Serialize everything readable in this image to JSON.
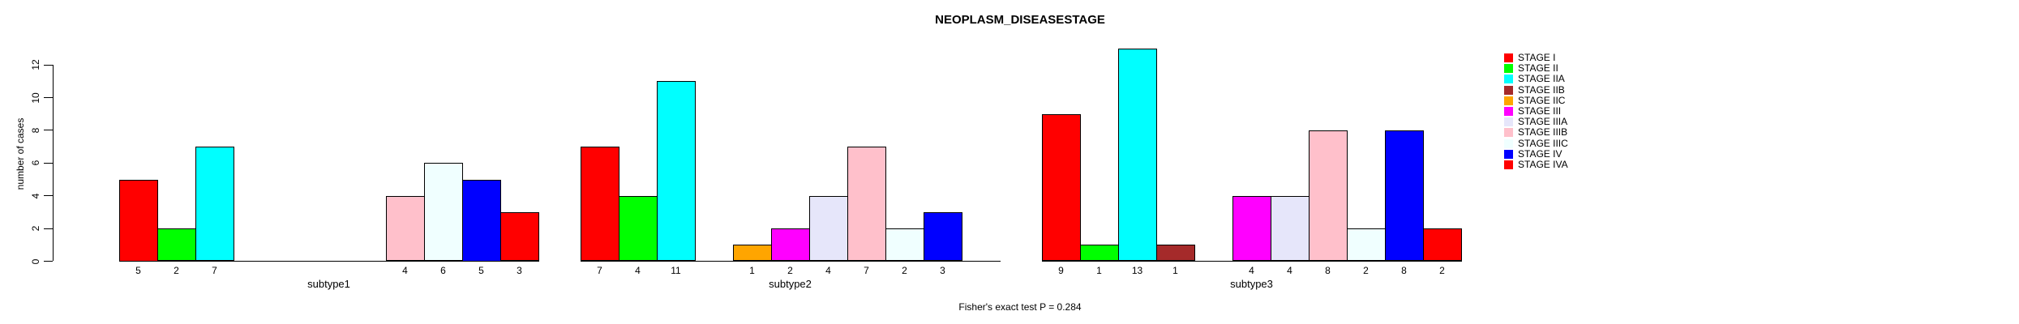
{
  "title": "NEOPLASM_DISEASESTAGE",
  "footer": "Fisher's exact test P = 0.284",
  "chart_data": {
    "type": "bar",
    "title": "NEOPLASM_DISEASESTAGE",
    "xlabel": "",
    "ylabel": "number of cases",
    "ylim": [
      0,
      13
    ],
    "yticks": [
      0,
      2,
      4,
      6,
      8,
      10,
      12
    ],
    "grid": false,
    "legend_position": "right",
    "annotation": "Fisher's exact test P = 0.284",
    "stages": [
      {
        "name": "STAGE I",
        "color": "#FF0000"
      },
      {
        "name": "STAGE II",
        "color": "#00FF00"
      },
      {
        "name": "STAGE IIA",
        "color": "#00FFFF"
      },
      {
        "name": "STAGE IIB",
        "color": "#A52A2A"
      },
      {
        "name": "STAGE IIC",
        "color": "#FFA500"
      },
      {
        "name": "STAGE III",
        "color": "#FF00FF"
      },
      {
        "name": "STAGE IIIA",
        "color": "#E6E6FA"
      },
      {
        "name": "STAGE IIIB",
        "color": "#FFC0CB"
      },
      {
        "name": "STAGE IIIC",
        "color": "#F0FFFF"
      },
      {
        "name": "STAGE IV",
        "color": "#0000FF"
      },
      {
        "name": "STAGE IVA",
        "color": "#FF0000"
      }
    ],
    "groups": [
      {
        "label": "subtype1",
        "values": [
          5,
          2,
          7,
          0,
          0,
          0,
          0,
          4,
          6,
          5,
          3
        ]
      },
      {
        "label": "subtype2",
        "values": [
          7,
          4,
          11,
          0,
          1,
          2,
          4,
          7,
          2,
          3,
          0
        ]
      },
      {
        "label": "subtype3",
        "values": [
          9,
          1,
          13,
          1,
          0,
          4,
          4,
          8,
          2,
          8,
          2
        ]
      }
    ]
  }
}
